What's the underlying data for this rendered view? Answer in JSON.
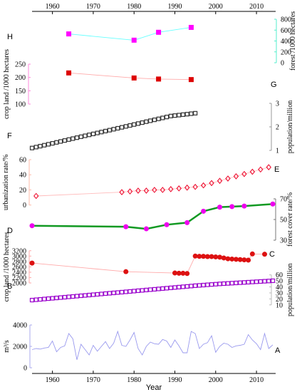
{
  "chart_data": [
    {
      "id": "H",
      "panel_label": "H",
      "type": "line",
      "ylabel": "forest /1000 hectares",
      "yaxis_side": "right",
      "yticks": [
        0,
        200,
        400,
        600,
        800
      ],
      "ylim": [
        0,
        800
      ],
      "colors": {
        "line": "#66ffff",
        "marker": "#ff00ff"
      },
      "marker": "square",
      "x": [
        1964,
        1980,
        1986,
        1994
      ],
      "y": [
        530,
        415,
        560,
        650
      ]
    },
    {
      "id": "G",
      "panel_label": "G",
      "type": "line",
      "ylabel": "crop land /1000 hectares",
      "yaxis_side": "left",
      "yticks": [
        100,
        150,
        200,
        250
      ],
      "ylim": [
        100,
        250
      ],
      "colors": {
        "line": "#ffaaaa",
        "marker": "#dd0000"
      },
      "marker": "square",
      "x": [
        1964,
        1980,
        1986,
        1994
      ],
      "y": [
        217,
        198,
        194,
        192
      ]
    },
    {
      "id": "F",
      "panel_label": "F",
      "type": "scatter",
      "ylabel": "population/million",
      "yaxis_side": "right",
      "yticks": [
        1,
        2,
        3
      ],
      "ylim": [
        1,
        3
      ],
      "colors": {
        "marker": "#333333"
      },
      "marker": "open-square",
      "x": [
        1955,
        1956,
        1957,
        1958,
        1959,
        1960,
        1961,
        1962,
        1963,
        1964,
        1965,
        1966,
        1967,
        1968,
        1969,
        1970,
        1971,
        1972,
        1973,
        1974,
        1975,
        1976,
        1977,
        1978,
        1979,
        1980,
        1981,
        1982,
        1983,
        1984,
        1985,
        1986,
        1987,
        1988,
        1989,
        1990,
        1991,
        1992,
        1993,
        1994,
        1995
      ],
      "y": [
        1.1,
        1.14,
        1.18,
        1.22,
        1.26,
        1.3,
        1.34,
        1.38,
        1.42,
        1.46,
        1.5,
        1.54,
        1.58,
        1.62,
        1.66,
        1.7,
        1.74,
        1.78,
        1.82,
        1.86,
        1.9,
        1.94,
        1.98,
        2.02,
        2.06,
        2.1,
        2.14,
        2.18,
        2.22,
        2.26,
        2.3,
        2.34,
        2.38,
        2.42,
        2.46,
        2.48,
        2.5,
        2.52,
        2.54,
        2.56,
        2.58
      ]
    },
    {
      "id": "E",
      "panel_label": "E",
      "type": "line",
      "ylabel": "urbanization rate/%",
      "yaxis_side": "left",
      "yticks": [
        0,
        20,
        40,
        60
      ],
      "ylim": [
        -5,
        60
      ],
      "colors": {
        "line": "#ffbbbb",
        "marker": "#ee1133"
      },
      "marker": "open-diamond",
      "x": [
        1956,
        1977,
        1979,
        1981,
        1983,
        1985,
        1987,
        1989,
        1991,
        1993,
        1995,
        1997,
        1999,
        2001,
        2003,
        2005,
        2007,
        2009,
        2011,
        2013
      ],
      "y": [
        12,
        17,
        18,
        19,
        19,
        20,
        20,
        21,
        22,
        23,
        24,
        26,
        29,
        32,
        35,
        38,
        41,
        44,
        47,
        50
      ]
    },
    {
      "id": "D",
      "panel_label": "D",
      "type": "line",
      "ylabel": "forest cover rate/%",
      "yaxis_side": "right",
      "yticks": [
        30,
        50,
        70
      ],
      "ylim": [
        30,
        70
      ],
      "colors": {
        "line": "#119922",
        "marker": "#ee00ee"
      },
      "marker": "circle",
      "x": [
        1955,
        1978,
        1983,
        1988,
        1993,
        1997,
        2001,
        2004,
        2007,
        2014
      ],
      "y": [
        44.0,
        43.0,
        41.0,
        45.0,
        47.0,
        58.0,
        62.0,
        62.5,
        63.0,
        65.0
      ]
    },
    {
      "id": "C",
      "panel_label": "C",
      "type": "scatter",
      "ylabel": "crop land /1000 hectares",
      "yaxis_side": "left",
      "yticks": [
        2000,
        2200,
        2400,
        2600,
        2800,
        3000,
        3200
      ],
      "ylim": [
        2000,
        3300
      ],
      "colors": {
        "line": "#ffaaaa",
        "marker": "#dd1111"
      },
      "marker": "circle",
      "x": [
        1955,
        1978,
        1990,
        1991,
        1992,
        1993,
        1995,
        1996,
        1997,
        1998,
        1999,
        2000,
        2001,
        2002,
        2003,
        2004,
        2005,
        2006,
        2007,
        2008,
        2009,
        2012
      ],
      "y": [
        2740,
        2420,
        2370,
        2360,
        2360,
        2350,
        3000,
        2990,
        2990,
        2980,
        2980,
        2970,
        2960,
        2930,
        2900,
        2890,
        2880,
        2870,
        2860,
        2850,
        3080,
        3070
      ]
    },
    {
      "id": "B",
      "panel_label": "B",
      "type": "scatter",
      "ylabel": "population/million",
      "yaxis_side": "right",
      "yticks": [
        10,
        20,
        30,
        40,
        50,
        60
      ],
      "ylim": [
        5,
        62
      ],
      "colors": {
        "marker": "#9900cc"
      },
      "marker": "open-square",
      "x": [
        1955,
        1956,
        1957,
        1958,
        1959,
        1960,
        1961,
        1962,
        1963,
        1964,
        1965,
        1966,
        1967,
        1968,
        1969,
        1970,
        1971,
        1972,
        1973,
        1974,
        1975,
        1976,
        1977,
        1978,
        1979,
        1980,
        1981,
        1982,
        1983,
        1984,
        1985,
        1986,
        1987,
        1988,
        1989,
        1990,
        1991,
        1992,
        1993,
        1994,
        1995,
        1996,
        1997,
        1998,
        1999,
        2000,
        2001,
        2002,
        2003,
        2004,
        2005,
        2006,
        2007,
        2008,
        2009,
        2010,
        2011,
        2012,
        2013,
        2014
      ],
      "y": [
        18.0,
        18.6,
        19.2,
        19.8,
        20.4,
        21.0,
        21.6,
        22.2,
        22.8,
        23.4,
        24.0,
        24.6,
        25.2,
        25.8,
        26.4,
        27.0,
        27.6,
        28.2,
        28.8,
        29.4,
        30.0,
        30.6,
        31.2,
        31.8,
        32.4,
        33.0,
        33.6,
        34.2,
        34.8,
        35.4,
        36.0,
        36.6,
        37.2,
        37.8,
        38.4,
        39.0,
        39.6,
        40.2,
        40.8,
        41.4,
        42.0,
        42.5,
        43.0,
        43.5,
        44.0,
        44.5,
        45.0,
        45.4,
        45.8,
        46.2,
        46.6,
        47.0,
        47.4,
        47.8,
        48.2,
        48.6,
        49.0,
        49.4,
        49.8,
        50.2
      ]
    },
    {
      "id": "A",
      "panel_label": "A",
      "type": "line",
      "ylabel": "m³/s",
      "yaxis_side": "left",
      "yticks": [
        0,
        2000,
        4000
      ],
      "ylim": [
        0,
        4000
      ],
      "colors": {
        "line": "#9999ee"
      },
      "x": [
        1955,
        1956,
        1957,
        1958,
        1959,
        1960,
        1961,
        1962,
        1963,
        1964,
        1965,
        1966,
        1967,
        1968,
        1969,
        1970,
        1971,
        1972,
        1973,
        1974,
        1975,
        1976,
        1977,
        1978,
        1979,
        1980,
        1981,
        1982,
        1983,
        1984,
        1985,
        1986,
        1987,
        1988,
        1989,
        1990,
        1991,
        1992,
        1993,
        1994,
        1995,
        1996,
        1997,
        1998,
        1999,
        2000,
        2001,
        2002,
        2003,
        2004,
        2005,
        2006,
        2007,
        2008,
        2009,
        2010,
        2011,
        2012,
        2013,
        2014
      ],
      "y": [
        1700,
        1800,
        1750,
        1850,
        1900,
        2500,
        1500,
        1900,
        2050,
        3200,
        2700,
        750,
        2200,
        1700,
        1200,
        2100,
        1550,
        2000,
        2450,
        1800,
        2300,
        3400,
        2100,
        2000,
        2600,
        3300,
        1800,
        1200,
        2000,
        2400,
        2250,
        2200,
        2650,
        2500,
        1900,
        2600,
        2050,
        1400,
        1400,
        3400,
        3200,
        1800,
        2200,
        2350,
        3000,
        1450,
        2000,
        2300,
        2200,
        1900,
        2050,
        2100,
        2200,
        3100,
        2600,
        2250,
        1700,
        3200,
        1800,
        2150
      ]
    }
  ],
  "x_axis": {
    "label": "Year",
    "ticks": [
      1960,
      1970,
      1980,
      1990,
      2000,
      2010
    ],
    "top_ticks": [
      1960,
      1970,
      1980,
      1990,
      2000,
      2010
    ],
    "xlim": [
      1955,
      2014.7
    ]
  }
}
